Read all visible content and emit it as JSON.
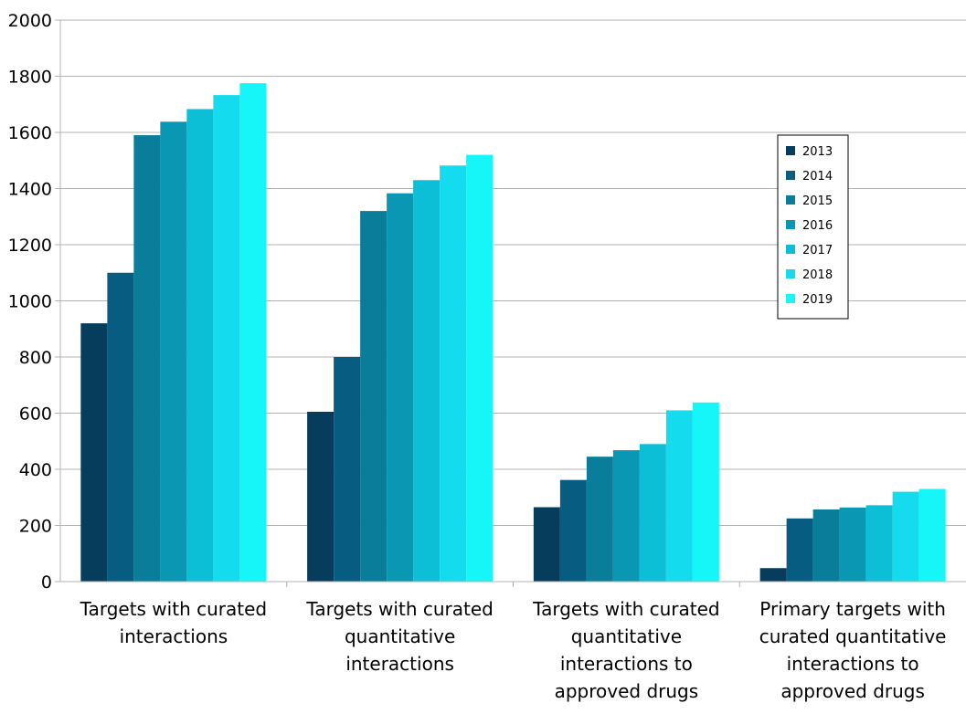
{
  "chart_data": {
    "type": "bar",
    "categories": [
      [
        "Targets with curated",
        "interactions"
      ],
      [
        "Targets with curated",
        "quantitative",
        "interactions"
      ],
      [
        "Targets with curated",
        "quantitative",
        "interactions to",
        "approved drugs"
      ],
      [
        "Primary targets with",
        "curated quantitative",
        "interactions to",
        "approved drugs"
      ]
    ],
    "series": [
      {
        "name": "2013",
        "color": "#063c5c",
        "values": [
          920,
          605,
          265,
          48
        ]
      },
      {
        "name": "2014",
        "color": "#075c82",
        "values": [
          1100,
          800,
          362,
          225
        ]
      },
      {
        "name": "2015",
        "color": "#0a7d9b",
        "values": [
          1590,
          1320,
          445,
          257
        ]
      },
      {
        "name": "2016",
        "color": "#0997b3",
        "values": [
          1638,
          1383,
          468,
          264
        ]
      },
      {
        "name": "2017",
        "color": "#0dbfd6",
        "values": [
          1683,
          1430,
          490,
          272
        ]
      },
      {
        "name": "2018",
        "color": "#14dcee",
        "values": [
          1733,
          1482,
          610,
          320
        ]
      },
      {
        "name": "2019",
        "color": "#16f5f8",
        "values": [
          1775,
          1520,
          638,
          330
        ]
      }
    ],
    "ylim": [
      0,
      2000
    ],
    "yticks": [
      0,
      200,
      400,
      600,
      800,
      1000,
      1200,
      1400,
      1600,
      1800,
      2000
    ],
    "grid": true,
    "legend_position": "right"
  }
}
